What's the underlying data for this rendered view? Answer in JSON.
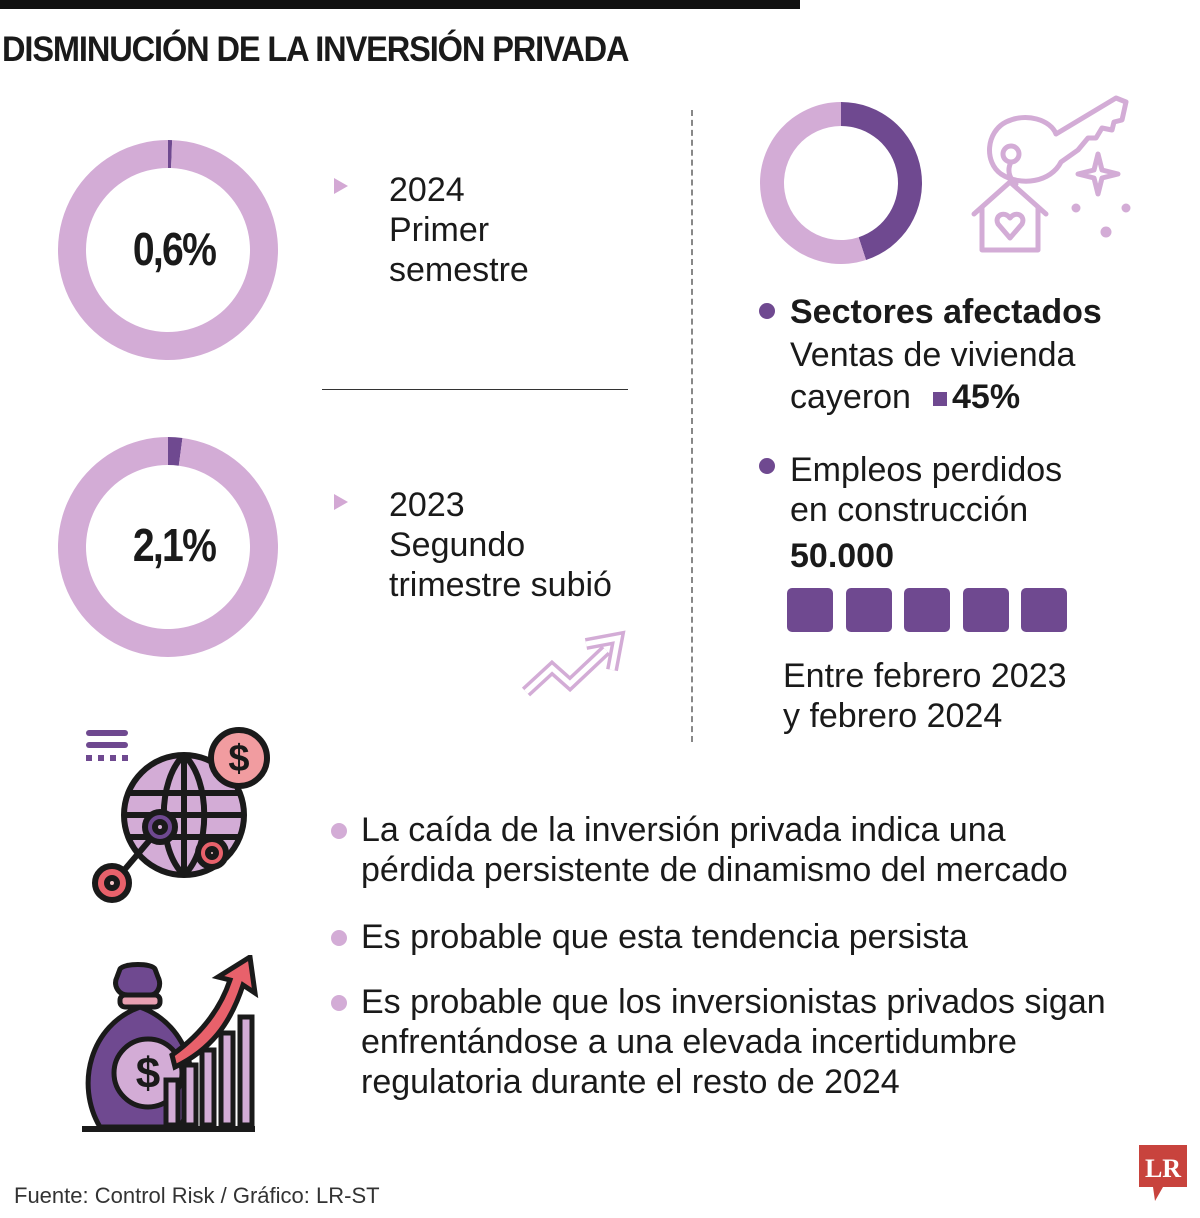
{
  "title": "DISMINUCIÓN DE LA INVERSIÓN PRIVADA",
  "colors": {
    "dark": "#6f4990",
    "light": "#d3acd6",
    "accent": "#e8616b"
  },
  "chart_data": [
    {
      "type": "pie",
      "variant": "donut",
      "label": "0,6%",
      "values": [
        0.6,
        99.4
      ],
      "caption": [
        "2024",
        "Primer",
        "semestre"
      ]
    },
    {
      "type": "pie",
      "variant": "donut",
      "label": "2,1%",
      "values": [
        2.1,
        97.9
      ],
      "caption": [
        "2023",
        "Segundo",
        "trimestre subió"
      ]
    },
    {
      "type": "pie",
      "variant": "donut",
      "label": "Ventas de vivienda cayeron 45%",
      "values": [
        45,
        55
      ]
    }
  ],
  "right": {
    "heading": "Sectores afectados",
    "line1": "Ventas de vivienda",
    "line2": "cayeron",
    "value1": "45%",
    "line3": "Empleos perdidos",
    "line4": "en construcción",
    "value2": "50.000",
    "squares": 5,
    "period1": "Entre febrero 2023",
    "period2": "y febrero 2024"
  },
  "bullets": [
    [
      "La caída de la inversión privada indica una",
      "pérdida persistente de dinamismo del mercado"
    ],
    [
      "Es probable que esta tendencia persista"
    ],
    [
      "Es probable que los inversionistas privados sigan",
      "enfrentándose a una elevada incertidumbre",
      "regulatoria durante el resto de 2024"
    ]
  ],
  "source": "Fuente: Control Risk / Gráfico: LR-ST",
  "logo": "LR"
}
